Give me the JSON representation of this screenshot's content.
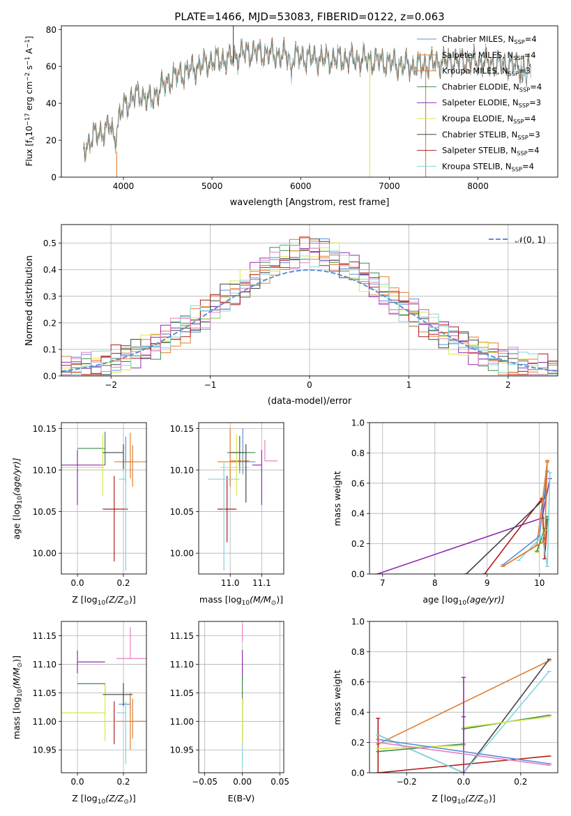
{
  "colors": {
    "Chabrier MILES": "#5b8fd6",
    "Salpeter MILES": "#e07d2f",
    "Kroupa MILES": "#e07d2f",
    "Chabrier ELODIE": "#3f8a48",
    "Salpeter ELODIE": "#8e2bb0",
    "Kroupa ELODIE": "#d8e84a",
    "Chabrier STELIB": "#444444",
    "Salpeter STELIB": "#b01b1b",
    "Kroupa STELIB": "#7fd7dc",
    "pink": "#e77fc2",
    "normal": "#5b8fd6",
    "grid": "#b0b0b0"
  },
  "chart_data": [
    {
      "id": "spectrum",
      "type": "line",
      "title": "PLATE=1466, MJD=53083, FIBERID=0122, z=0.063",
      "xlabel": "wavelength [Angstrom, rest frame]",
      "ylabel": "Flux [f",
      "ylabel_parts": [
        "Flux [f",
        "λ",
        "10",
        "−17",
        " erg cm",
        "−2",
        " s",
        "−1",
        " A",
        "−1",
        "]"
      ],
      "xlim": [
        3300,
        8900
      ],
      "ylim": [
        0,
        82
      ],
      "xticks": [
        4000,
        5000,
        6000,
        7000,
        8000
      ],
      "yticks": [
        0,
        20,
        40,
        60,
        80
      ],
      "continuum": {
        "x": [
          3550,
          3650,
          3750,
          3850,
          3900,
          3950,
          4000,
          4100,
          4200,
          4300,
          4400,
          4500,
          4600,
          4700,
          4800,
          5000,
          5200,
          5400,
          5600,
          5800,
          6000,
          6300,
          6600,
          6900,
          7100,
          7300,
          7500,
          7700,
          7900,
          8100,
          8300,
          8500,
          8600
        ],
        "y": [
          14,
          22,
          24,
          28,
          21,
          31,
          38,
          43,
          45,
          41,
          47,
          52,
          55,
          57,
          59,
          63,
          64,
          68,
          67,
          66,
          65,
          64,
          64,
          63,
          61,
          60,
          62,
          63,
          63,
          62,
          61,
          60,
          58
        ]
      },
      "legend": [
        {
          "label": "Chabrier MILES, N",
          "sub": "SSP",
          "tail": "=4"
        },
        {
          "label": "Salpeter MILES, N",
          "sub": "SSP",
          "tail": "=4"
        },
        {
          "label": "Kroupa MILES, N",
          "sub": "SSP",
          "tail": "=3"
        },
        {
          "label": "Chabrier ELODIE, N",
          "sub": "SSP",
          "tail": "=4"
        },
        {
          "label": "Salpeter ELODIE, N",
          "sub": "SSP",
          "tail": "=3"
        },
        {
          "label": "Kroupa ELODIE, N",
          "sub": "SSP",
          "tail": "=4"
        },
        {
          "label": "Chabrier STELIB, N",
          "sub": "SSP",
          "tail": "=3"
        },
        {
          "label": "Salpeter STELIB, N",
          "sub": "SSP",
          "tail": "=4"
        },
        {
          "label": "Kroupa STELIB, N",
          "sub": "SSP",
          "tail": "=4"
        }
      ],
      "series_colors": [
        "Chabrier MILES",
        "Salpeter MILES",
        "Kroupa MILES",
        "Chabrier ELODIE",
        "Salpeter ELODIE",
        "Kroupa ELODIE",
        "Chabrier STELIB",
        "Salpeter STELIB",
        "Kroupa STELIB"
      ]
    },
    {
      "id": "residuals",
      "type": "histogram",
      "xlabel": "(data-model)/error",
      "ylabel": "Normed distribution",
      "xlim": [
        -2.5,
        2.5
      ],
      "ylim": [
        0,
        0.57
      ],
      "xticks": [
        -2,
        -1,
        0,
        1,
        2
      ],
      "yticks": [
        0.0,
        0.1,
        0.2,
        0.3,
        0.4,
        0.5
      ],
      "legend": "𝒩(0, 1)",
      "bin_width": 0.1
    },
    {
      "id": "age_vs_Z",
      "type": "errorbar",
      "xlabel": "Z [log",
      "xlabel_text": [
        "Z [log",
        "10",
        "(Z/Z",
        "⊙",
        ")]"
      ],
      "ylabel_text": [
        "age  [log",
        "10",
        "(age/yr)]"
      ],
      "xlim": [
        -0.07,
        0.3
      ],
      "ylim": [
        9.975,
        10.157
      ],
      "xticks": [
        "0.0",
        "0.2"
      ],
      "yticks": [
        "10.00",
        "10.05",
        "10.10",
        "10.15"
      ],
      "points": [
        {
          "c": "Chabrier MILES",
          "x": 0.21,
          "y": 10.11,
          "xe": [
            0.03,
            0.03
          ],
          "ye": [
            0.025,
            0.03
          ]
        },
        {
          "c": "Salpeter MILES",
          "x": 0.23,
          "y": 10.11,
          "xe": [
            0.07,
            0.07
          ],
          "ye": [
            0.02,
            0.035
          ]
        },
        {
          "c": "Kroupa MILES",
          "x": 0.24,
          "y": 10.11,
          "xe": [
            0.03,
            0.03
          ],
          "ye": [
            0.03,
            0.02
          ]
        },
        {
          "c": "Chabrier ELODIE",
          "x": 0.12,
          "y": 10.126,
          "xe": [
            0.12,
            0.0
          ],
          "ye": [
            0.02,
            0.02
          ]
        },
        {
          "c": "Salpeter ELODIE",
          "x": 0.0,
          "y": 10.106,
          "xe": [
            0.07,
            0.12
          ],
          "ye": [
            0.048,
            0.018
          ]
        },
        {
          "c": "Kroupa ELODIE",
          "x": 0.11,
          "y": 10.103,
          "xe": [
            0.2,
            0.0
          ],
          "ye": [
            0.034,
            0.04
          ]
        },
        {
          "c": "Chabrier STELIB",
          "x": 0.2,
          "y": 10.121,
          "xe": [
            0.09,
            0.0
          ],
          "ye": [
            0.02,
            0.01
          ]
        },
        {
          "c": "Salpeter STELIB",
          "x": 0.16,
          "y": 10.053,
          "xe": [
            0.05,
            0.06
          ],
          "ye": [
            0.063,
            0.04
          ]
        },
        {
          "c": "Kroupa STELIB",
          "x": 0.21,
          "y": 10.089,
          "xe": [
            0.03,
            0.0
          ],
          "ye": [
            0.11,
            0.02
          ]
        }
      ]
    },
    {
      "id": "age_vs_mass",
      "type": "errorbar",
      "xlabel_text": [
        "mass [log",
        "10",
        "(M/M",
        "⊙",
        ")]"
      ],
      "xlim": [
        10.9,
        11.17
      ],
      "ylim": [
        9.975,
        10.157
      ],
      "xticks": [
        "11.0",
        "11.1"
      ],
      "yticks": [
        "10.00",
        "10.05",
        "10.10",
        "10.15"
      ],
      "points": [
        {
          "c": "Chabrier MILES",
          "x": 11.04,
          "y": 10.11,
          "xe": [
            0.04,
            0.04
          ],
          "ye": [
            0.015,
            0.04
          ]
        },
        {
          "c": "Salpeter MILES",
          "x": 11.0,
          "y": 10.11,
          "xe": [
            0.04,
            0.04
          ],
          "ye": [
            0.03,
            0.04
          ]
        },
        {
          "c": "Kroupa MILES",
          "x": 11.03,
          "y": 10.111,
          "xe": [
            0.03,
            0.03
          ],
          "ye": [
            0.015,
            0.03
          ]
        },
        {
          "c": "Chabrier ELODIE",
          "x": 11.03,
          "y": 10.121,
          "xe": [
            0.04,
            0.05
          ],
          "ye": [
            0.02,
            0.02
          ]
        },
        {
          "c": "Salpeter ELODIE",
          "x": 11.1,
          "y": 10.106,
          "xe": [
            0.03,
            0.0
          ],
          "ye": [
            0.048,
            0.018
          ]
        },
        {
          "c": "Kroupa ELODIE",
          "x": 11.02,
          "y": 10.103,
          "xe": [
            0.05,
            0.04
          ],
          "ye": [
            0.034,
            0.04
          ]
        },
        {
          "c": "Chabrier STELIB",
          "x": 11.05,
          "y": 10.121,
          "xe": [
            0.05,
            0.0
          ],
          "ye": [
            0.06,
            0.01
          ]
        },
        {
          "c": "Salpeter STELIB",
          "x": 10.99,
          "y": 10.053,
          "xe": [
            0.03,
            0.03
          ],
          "ye": [
            0.04,
            0.04
          ]
        },
        {
          "c": "Kroupa STELIB",
          "x": 10.98,
          "y": 10.089,
          "xe": [
            0.05,
            0.05
          ],
          "ye": [
            0.11,
            0.02
          ]
        },
        {
          "c": "pink",
          "x": 11.11,
          "y": 10.111,
          "xe": [
            0.0,
            0.04
          ],
          "ye": [
            0.0,
            0.025
          ]
        }
      ]
    },
    {
      "id": "weight_vs_age",
      "type": "line",
      "xlabel_text": [
        "age  [log",
        "10",
        "(age/yr)]"
      ],
      "ylabel": "mass weight",
      "xlim": [
        6.75,
        10.35
      ],
      "ylim": [
        0,
        1.0
      ],
      "xticks": [
        "7",
        "8",
        "9",
        "10"
      ],
      "yticks": [
        "0.0",
        "0.2",
        "0.4",
        "0.6",
        "0.8",
        "1.0"
      ],
      "series": [
        {
          "c": "Salpeter ELODIE",
          "x": [
            6.9,
            10.05,
            10.2
          ],
          "y": [
            0.0,
            0.37,
            0.63
          ]
        },
        {
          "c": "Salpeter STELIB",
          "x": [
            8.95,
            10.05,
            10.1,
            10.15
          ],
          "y": [
            0.0,
            0.5,
            0.1,
            0.36
          ]
        },
        {
          "c": "Chabrier STELIB",
          "x": [
            8.6,
            10.1,
            10.15
          ],
          "y": [
            0.0,
            0.5,
            0.74
          ]
        },
        {
          "c": "Salpeter MILES",
          "x": [
            9.3,
            9.95,
            10.15
          ],
          "y": [
            0.05,
            0.19,
            0.74
          ]
        },
        {
          "c": "Chabrier MILES",
          "x": [
            9.3,
            10.0,
            10.15
          ],
          "y": [
            0.06,
            0.25,
            0.68
          ]
        },
        {
          "c": "Kroupa ELODIE",
          "x": [
            9.95,
            10.1,
            10.15
          ],
          "y": [
            0.14,
            0.29,
            0.38
          ]
        },
        {
          "c": "Chabrier ELODIE",
          "x": [
            9.95,
            10.1,
            10.15
          ],
          "y": [
            0.15,
            0.3,
            0.38
          ]
        },
        {
          "c": "Kroupa STELIB",
          "x": [
            9.6,
            10.05,
            10.15,
            10.2
          ],
          "y": [
            0.09,
            0.25,
            0.05,
            0.67
          ]
        },
        {
          "c": "Kroupa MILES",
          "x": [
            9.3,
            10.1,
            10.15
          ],
          "y": [
            0.05,
            0.22,
            0.75
          ]
        }
      ]
    },
    {
      "id": "mass_vs_Z",
      "type": "errorbar",
      "xlabel_text": [
        "Z [log",
        "10",
        "(Z/Z",
        "⊙",
        ")]"
      ],
      "ylabel_text": [
        "mass [log",
        "10",
        "(M/M",
        "⊙",
        ")]"
      ],
      "xlim": [
        -0.07,
        0.3
      ],
      "ylim": [
        10.91,
        11.175
      ],
      "xticks": [
        "0.0",
        "0.2"
      ],
      "yticks": [
        "10.95",
        "11.00",
        "11.05",
        "11.10",
        "11.15"
      ],
      "points": [
        {
          "c": "Chabrier MILES",
          "x": 0.23,
          "y": 11.03,
          "xe": [
            0.05,
            0.0
          ],
          "ye": [
            0.02,
            0.02
          ]
        },
        {
          "c": "Salpeter MILES",
          "x": 0.23,
          "y": 11.0,
          "xe": [
            0.06,
            0.07
          ],
          "ye": [
            0.05,
            0.05
          ]
        },
        {
          "c": "Kroupa MILES",
          "x": 0.24,
          "y": 11.0,
          "xe": [
            0.0,
            0.05
          ],
          "ye": [
            0.03,
            0.04
          ]
        },
        {
          "c": "Chabrier ELODIE",
          "x": 0.12,
          "y": 11.066,
          "xe": [
            0.12,
            0.0
          ],
          "ye": [
            0.02,
            0.0
          ]
        },
        {
          "c": "Salpeter ELODIE",
          "x": 0.0,
          "y": 11.104,
          "xe": [
            0.0,
            0.12
          ],
          "ye": [
            0.02,
            0.02
          ]
        },
        {
          "c": "Kroupa ELODIE",
          "x": 0.12,
          "y": 11.015,
          "xe": [
            0.2,
            0.0
          ],
          "ye": [
            0.05,
            0.05
          ]
        },
        {
          "c": "Chabrier STELIB",
          "x": 0.2,
          "y": 11.047,
          "xe": [
            0.09,
            0.04
          ],
          "ye": [
            0.02,
            0.02
          ]
        },
        {
          "c": "Salpeter STELIB",
          "x": 0.16,
          "y": 11.0,
          "xe": [
            0.0,
            0.0
          ],
          "ye": [
            0.04,
            0.035
          ]
        },
        {
          "c": "Kroupa STELIB",
          "x": 0.21,
          "y": 11.015,
          "xe": [
            0.04,
            0.0
          ],
          "ye": [
            0.09,
            0.02
          ]
        },
        {
          "c": "pink",
          "x": 0.23,
          "y": 11.11,
          "xe": [
            0.06,
            0.07
          ],
          "ye": [
            0.0,
            0.055
          ]
        }
      ]
    },
    {
      "id": "mass_vs_EBV",
      "type": "errorbar",
      "xlabel": "E(B-V)",
      "xlim": [
        -0.058,
        0.055
      ],
      "ylim": [
        10.91,
        11.175
      ],
      "xticks": [
        "−0.05",
        "0.00",
        "0.05"
      ],
      "yticks": [
        "10.95",
        "11.00",
        "11.05",
        "11.10",
        "11.15"
      ],
      "points": [
        {
          "c": "Salpeter ELODIE",
          "x": 0.0,
          "y": 11.1,
          "xe": [
            0,
            0
          ],
          "ye": [
            0.03,
            0.025
          ]
        },
        {
          "c": "pink",
          "x": 0.0,
          "y": 11.14,
          "xe": [
            0,
            0
          ],
          "ye": [
            0.0,
            0.03
          ]
        },
        {
          "c": "Chabrier ELODIE",
          "x": 0.0,
          "y": 11.06,
          "xe": [
            0,
            0
          ],
          "ye": [
            0.03,
            0.02
          ]
        },
        {
          "c": "Salpeter STELIB",
          "x": 0.0,
          "y": 11.0,
          "xe": [
            0,
            0
          ],
          "ye": [
            0.04,
            0.04
          ]
        },
        {
          "c": "Kroupa STELIB",
          "x": 0.0,
          "y": 11.0,
          "xe": [
            0,
            0
          ],
          "ye": [
            0.08,
            0.03
          ]
        },
        {
          "c": "Kroupa ELODIE",
          "x": 0.0,
          "y": 11.0,
          "xe": [
            0,
            0
          ],
          "ye": [
            0.04,
            0.04
          ]
        }
      ]
    },
    {
      "id": "weight_vs_Z",
      "type": "line",
      "xlabel_text": [
        "Z [log",
        "10",
        "(Z/Z",
        "⊙",
        ")]"
      ],
      "ylabel": "mass weight",
      "xlim": [
        -0.33,
        0.33
      ],
      "ylim": [
        0,
        1.0
      ],
      "xticks": [
        "−0.2",
        "0.0",
        "0.2"
      ],
      "yticks": [
        "0.0",
        "0.2",
        "0.4",
        "0.6",
        "0.8",
        "1.0"
      ],
      "series": [
        {
          "c": "Salpeter MILES",
          "x": [
            -0.3,
            0.3
          ],
          "y": [
            0.19,
            0.74
          ]
        },
        {
          "c": "Salpeter STELIB",
          "x": [
            -0.3,
            -0.3,
            0.3
          ],
          "y": [
            0.36,
            0.0,
            0.11
          ]
        },
        {
          "c": "Chabrier STELIB",
          "x": [
            -0.3,
            0.0,
            0.3
          ],
          "y": [
            0.25,
            0.0,
            0.75
          ]
        },
        {
          "c": "Kroupa STELIB",
          "x": [
            -0.3,
            0.0,
            0.3
          ],
          "y": [
            0.25,
            0.0,
            0.67
          ]
        },
        {
          "c": "Chabrier ELODIE",
          "x": [
            -0.3,
            0.0,
            0.0,
            0.3
          ],
          "y": [
            0.14,
            0.19,
            0.29,
            0.38
          ]
        },
        {
          "c": "Kroupa ELODIE",
          "x": [
            -0.3,
            0.0,
            0.0,
            0.3
          ],
          "y": [
            0.16,
            0.18,
            0.3,
            0.37
          ]
        },
        {
          "c": "Salpeter ELODIE",
          "x": [
            0.0,
            0.0,
            0.0
          ],
          "y": [
            0.63,
            0.37,
            0.0
          ]
        },
        {
          "c": "pink",
          "x": [
            -0.3,
            0.3
          ],
          "y": [
            0.2,
            0.05
          ]
        },
        {
          "c": "Chabrier MILES",
          "x": [
            -0.3,
            0.3
          ],
          "y": [
            0.22,
            0.06
          ]
        }
      ]
    }
  ]
}
